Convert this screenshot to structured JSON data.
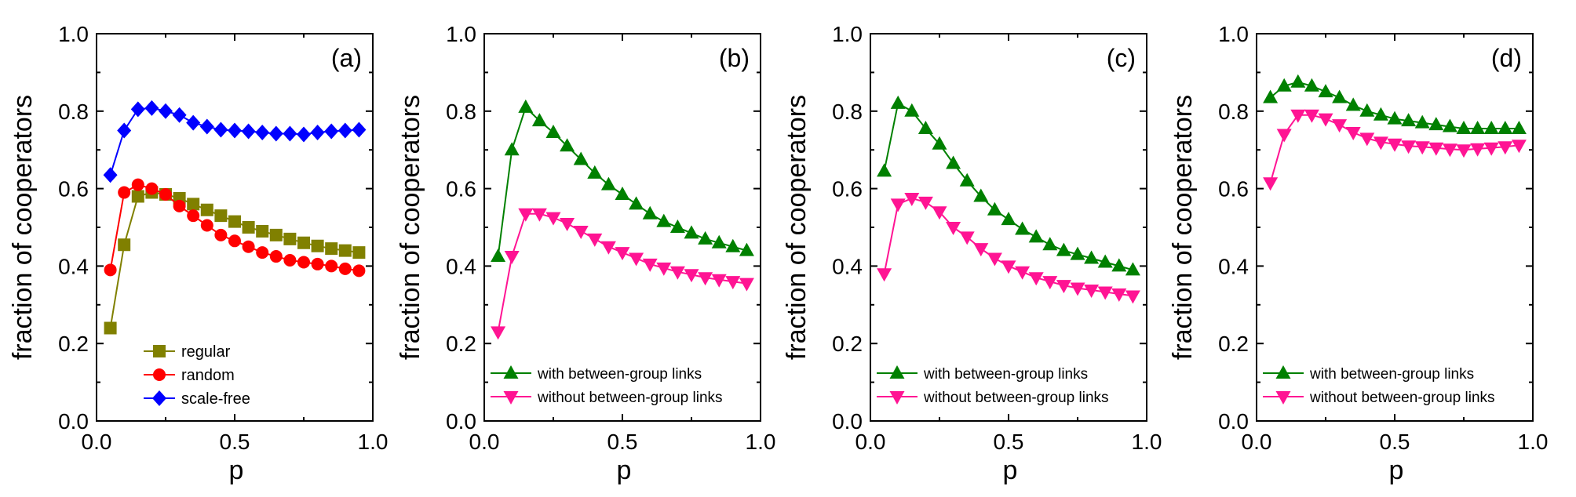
{
  "colors": {
    "regular": "#808000",
    "random": "#ff0000",
    "scale_free": "#0000ff",
    "with_links": "#008000",
    "without_links": "#ff1493"
  },
  "chart_data": [
    {
      "type": "line",
      "panel_label": "(a)",
      "xlabel": "p",
      "ylabel": "fraction of cooperators",
      "xlim": [
        0,
        1
      ],
      "ylim": [
        0,
        1
      ],
      "xticks": [
        "0.0",
        "0.5",
        "1.0"
      ],
      "yticks": [
        "0.0",
        "0.2",
        "0.4",
        "0.6",
        "0.8",
        "1.0"
      ],
      "legend": "bottom-center",
      "x": [
        0.05,
        0.1,
        0.15,
        0.2,
        0.25,
        0.3,
        0.35,
        0.4,
        0.45,
        0.5,
        0.55,
        0.6,
        0.65,
        0.7,
        0.75,
        0.8,
        0.85,
        0.9,
        0.95
      ],
      "series": [
        {
          "name": "regular",
          "marker": "square",
          "color_key": "regular",
          "values": [
            0.24,
            0.455,
            0.58,
            0.59,
            0.585,
            0.575,
            0.56,
            0.545,
            0.53,
            0.515,
            0.5,
            0.49,
            0.48,
            0.47,
            0.46,
            0.452,
            0.445,
            0.44,
            0.435
          ]
        },
        {
          "name": "random",
          "marker": "circle",
          "color_key": "random",
          "values": [
            0.39,
            0.59,
            0.61,
            0.6,
            0.585,
            0.555,
            0.53,
            0.505,
            0.48,
            0.465,
            0.45,
            0.435,
            0.425,
            0.415,
            0.41,
            0.405,
            0.4,
            0.393,
            0.388
          ]
        },
        {
          "name": "scale-free",
          "marker": "diamond",
          "color_key": "scale_free",
          "values": [
            0.635,
            0.75,
            0.805,
            0.808,
            0.8,
            0.79,
            0.77,
            0.76,
            0.752,
            0.75,
            0.748,
            0.745,
            0.742,
            0.742,
            0.74,
            0.745,
            0.748,
            0.75,
            0.752
          ]
        }
      ]
    },
    {
      "type": "line",
      "panel_label": "(b)",
      "xlabel": "p",
      "ylabel": "fraction of cooperators",
      "xlim": [
        0,
        1
      ],
      "ylim": [
        0,
        1
      ],
      "xticks": [
        "0.0",
        "0.5",
        "1.0"
      ],
      "yticks": [
        "0.0",
        "0.2",
        "0.4",
        "0.6",
        "0.8",
        "1.0"
      ],
      "legend": "bottom-left",
      "x": [
        0.05,
        0.1,
        0.15,
        0.2,
        0.25,
        0.3,
        0.35,
        0.4,
        0.45,
        0.5,
        0.55,
        0.6,
        0.65,
        0.7,
        0.75,
        0.8,
        0.85,
        0.9,
        0.95
      ],
      "series": [
        {
          "name": "with between-group links",
          "marker": "triangle-up",
          "color_key": "with_links",
          "values": [
            0.425,
            0.7,
            0.81,
            0.775,
            0.745,
            0.71,
            0.675,
            0.64,
            0.61,
            0.585,
            0.56,
            0.535,
            0.515,
            0.5,
            0.485,
            0.47,
            0.46,
            0.45,
            0.44
          ]
        },
        {
          "name": "without between-group links",
          "marker": "triangle-down",
          "color_key": "without_links",
          "values": [
            0.23,
            0.425,
            0.535,
            0.535,
            0.525,
            0.51,
            0.49,
            0.47,
            0.45,
            0.435,
            0.42,
            0.405,
            0.395,
            0.385,
            0.378,
            0.37,
            0.365,
            0.36,
            0.355
          ]
        }
      ]
    },
    {
      "type": "line",
      "panel_label": "(c)",
      "xlabel": "p",
      "ylabel": "fraction of cooperators",
      "xlim": [
        0,
        1
      ],
      "ylim": [
        0,
        1
      ],
      "xticks": [
        "0.0",
        "0.5",
        "1.0"
      ],
      "yticks": [
        "0.0",
        "0.2",
        "0.4",
        "0.6",
        "0.8",
        "1.0"
      ],
      "legend": "bottom-left",
      "x": [
        0.05,
        0.1,
        0.15,
        0.2,
        0.25,
        0.3,
        0.35,
        0.4,
        0.45,
        0.5,
        0.55,
        0.6,
        0.65,
        0.7,
        0.75,
        0.8,
        0.85,
        0.9,
        0.95
      ],
      "series": [
        {
          "name": "with between-group links",
          "marker": "triangle-up",
          "color_key": "with_links",
          "values": [
            0.645,
            0.82,
            0.8,
            0.755,
            0.715,
            0.665,
            0.62,
            0.58,
            0.545,
            0.52,
            0.495,
            0.475,
            0.455,
            0.44,
            0.43,
            0.42,
            0.41,
            0.4,
            0.39
          ]
        },
        {
          "name": "without between-group links",
          "marker": "triangle-down",
          "color_key": "without_links",
          "values": [
            0.38,
            0.56,
            0.575,
            0.565,
            0.54,
            0.5,
            0.475,
            0.445,
            0.42,
            0.4,
            0.385,
            0.37,
            0.36,
            0.35,
            0.343,
            0.338,
            0.333,
            0.328,
            0.323
          ]
        }
      ]
    },
    {
      "type": "line",
      "panel_label": "(d)",
      "xlabel": "p",
      "ylabel": "fraction of cooperators",
      "xlim": [
        0,
        1
      ],
      "ylim": [
        0,
        1
      ],
      "xticks": [
        "0.0",
        "0.5",
        "1.0"
      ],
      "yticks": [
        "0.0",
        "0.2",
        "0.4",
        "0.6",
        "0.8",
        "1.0"
      ],
      "legend": "bottom-left",
      "x": [
        0.05,
        0.1,
        0.15,
        0.2,
        0.25,
        0.3,
        0.35,
        0.4,
        0.45,
        0.5,
        0.55,
        0.6,
        0.65,
        0.7,
        0.75,
        0.8,
        0.85,
        0.9,
        0.95
      ],
      "series": [
        {
          "name": "with between-group links",
          "marker": "triangle-up",
          "color_key": "with_links",
          "values": [
            0.835,
            0.865,
            0.875,
            0.865,
            0.85,
            0.835,
            0.815,
            0.8,
            0.79,
            0.78,
            0.775,
            0.77,
            0.765,
            0.76,
            0.755,
            0.755,
            0.755,
            0.755,
            0.755
          ]
        },
        {
          "name": "without between-group links",
          "marker": "triangle-down",
          "color_key": "without_links",
          "values": [
            0.615,
            0.74,
            0.79,
            0.79,
            0.78,
            0.765,
            0.745,
            0.73,
            0.72,
            0.715,
            0.71,
            0.708,
            0.705,
            0.702,
            0.7,
            0.703,
            0.705,
            0.708,
            0.712
          ]
        }
      ]
    }
  ]
}
